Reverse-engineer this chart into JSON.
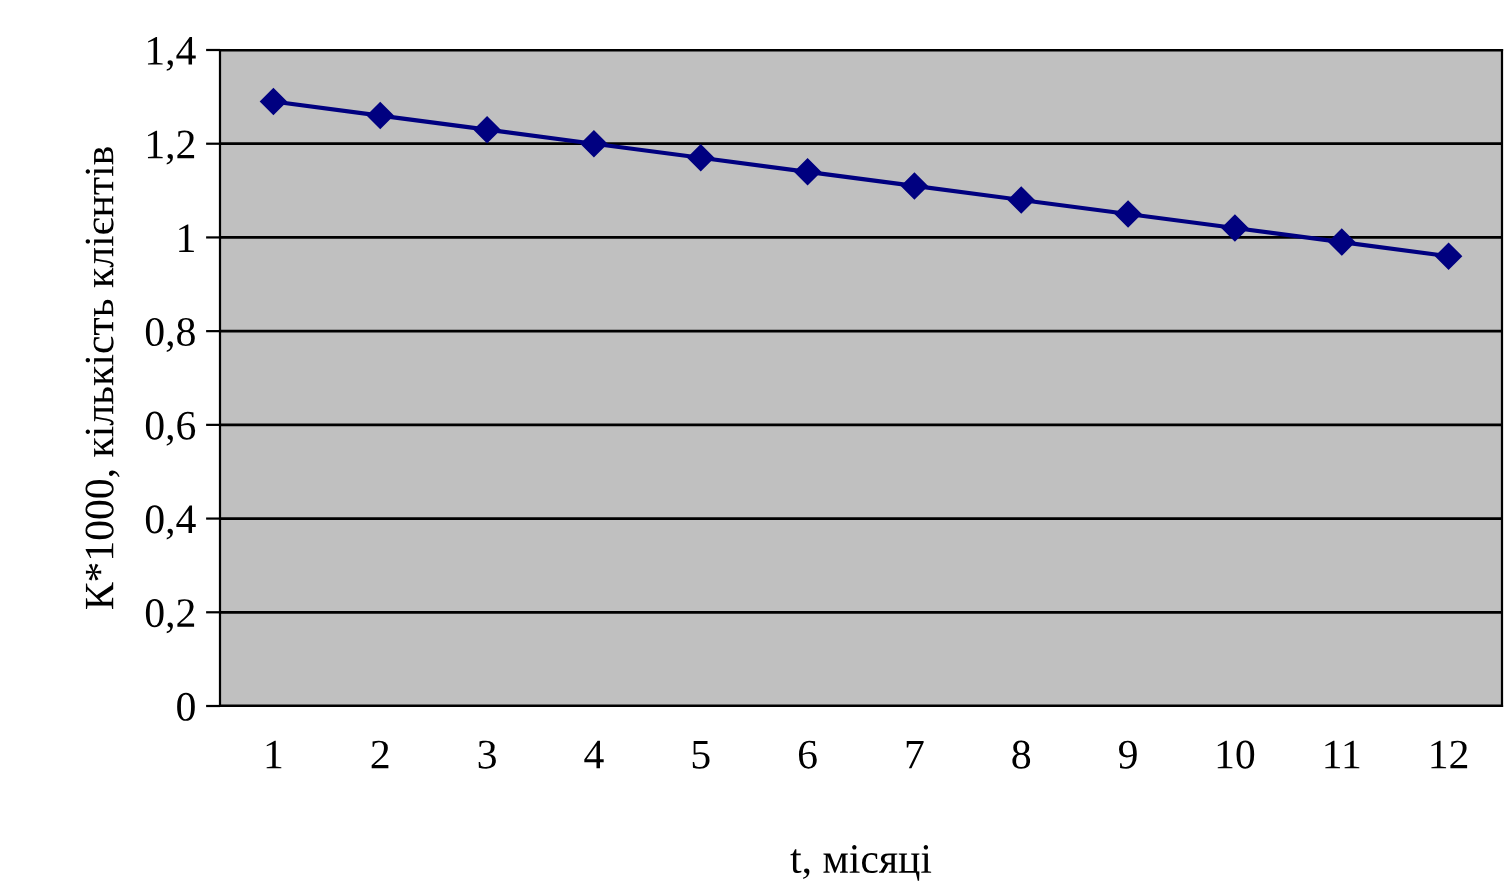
{
  "chart_data": {
    "type": "line",
    "categories": [
      "1",
      "2",
      "3",
      "4",
      "5",
      "6",
      "7",
      "8",
      "9",
      "10",
      "11",
      "12"
    ],
    "series": [
      {
        "color": "#000080",
        "values": [
          1.29,
          1.26,
          1.23,
          1.2,
          1.17,
          1.14,
          1.11,
          1.08,
          1.05,
          1.02,
          0.99,
          0.96
        ]
      }
    ],
    "xlabel": "t, місяці",
    "ylabel": "К*1000, кількість клієнтів",
    "ylim": [
      0,
      1.4
    ],
    "yticks": [
      0,
      {
        "value": 0.2,
        "label": "0,2"
      },
      {
        "value": 0.4,
        "label": "0,4"
      },
      {
        "value": 0.6,
        "label": "0,6"
      },
      {
        "value": 0.8,
        "label": "0,8"
      },
      1,
      {
        "value": 1.2,
        "label": "1,2"
      },
      {
        "value": 1.4,
        "label": "1,4"
      }
    ],
    "grid": "y",
    "marker": "diamond",
    "line_style": "solid",
    "legend": false
  }
}
